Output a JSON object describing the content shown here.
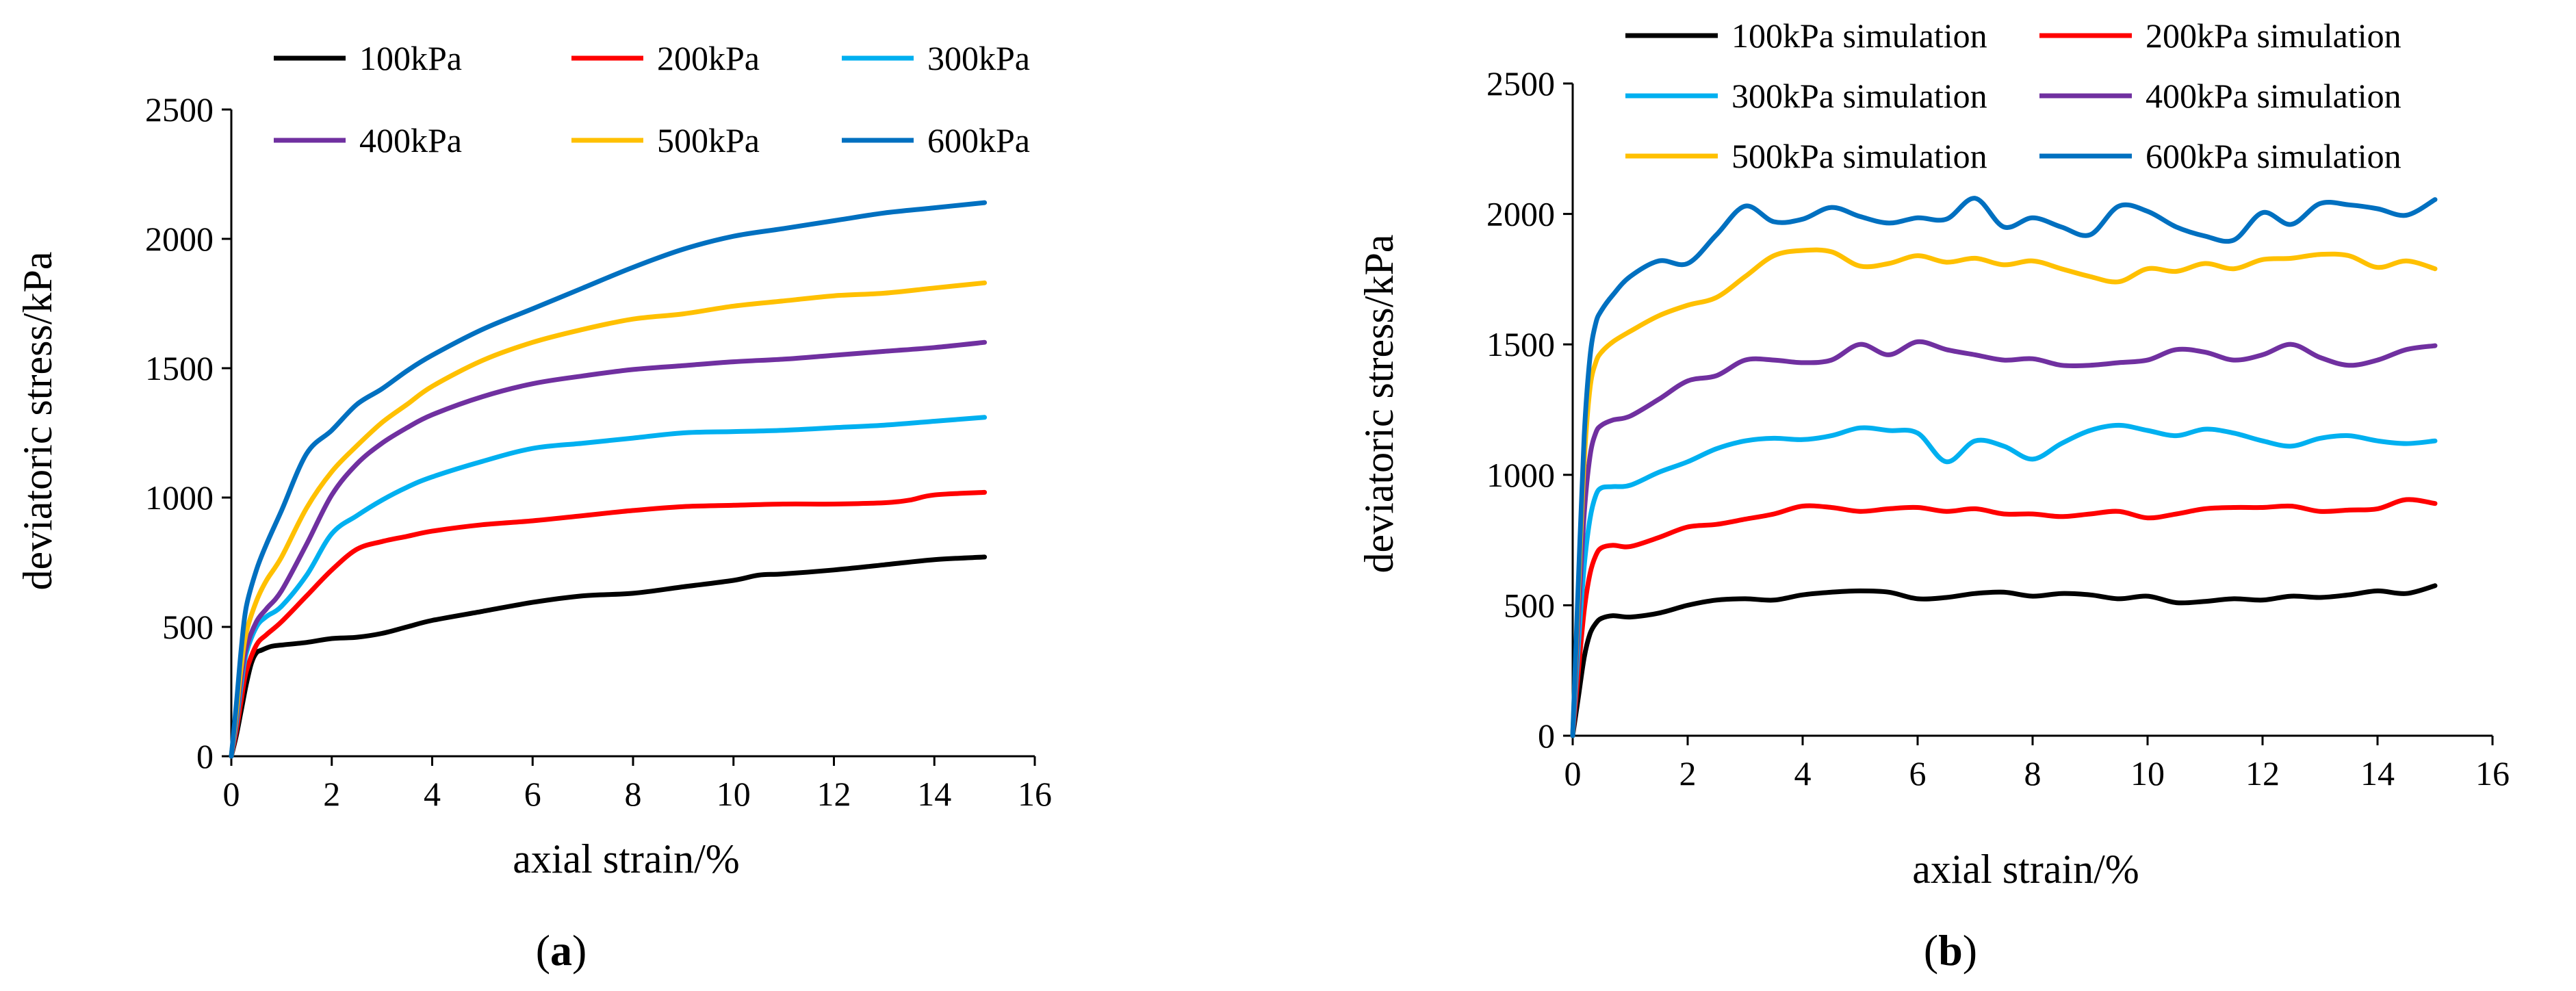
{
  "figure": {
    "panels": [
      {
        "caption_open": "(",
        "caption_letter": "a",
        "caption_close": ")"
      },
      {
        "caption_open": "(",
        "caption_letter": "b",
        "caption_close": ")"
      }
    ]
  },
  "chart_data": [
    {
      "type": "line",
      "panel": "a",
      "title": "",
      "xlabel": "axial strain/%",
      "ylabel": "deviatoric stress/kPa",
      "xlim": [
        0,
        16
      ],
      "ylim": [
        0,
        2500
      ],
      "xticks": [
        0,
        2,
        4,
        6,
        8,
        10,
        12,
        14,
        16
      ],
      "yticks": [
        0,
        500,
        1000,
        1500,
        2000,
        2500
      ],
      "grid": false,
      "legend_position": "top",
      "series": [
        {
          "name": "100kPa",
          "color": "#000000",
          "x": [
            0,
            0.1,
            0.2,
            0.3,
            0.4,
            0.5,
            0.6,
            0.8,
            1,
            1.5,
            2,
            2.5,
            3,
            3.5,
            4,
            5,
            6,
            7,
            8,
            9,
            10,
            10.5,
            11,
            12,
            13,
            14,
            15
          ],
          "y": [
            0,
            80,
            180,
            280,
            360,
            400,
            410,
            425,
            430,
            440,
            455,
            460,
            475,
            500,
            525,
            560,
            595,
            620,
            630,
            655,
            680,
            700,
            705,
            720,
            740,
            760,
            770
          ]
        },
        {
          "name": "200kPa",
          "color": "#ff0000",
          "x": [
            0,
            0.1,
            0.2,
            0.3,
            0.5,
            0.7,
            1,
            1.5,
            2,
            2.5,
            3,
            3.5,
            4,
            5,
            6,
            7,
            8,
            9,
            10,
            11,
            12,
            13,
            13.5,
            14,
            15
          ],
          "y": [
            0,
            100,
            220,
            330,
            430,
            470,
            520,
            620,
            720,
            800,
            830,
            850,
            870,
            895,
            910,
            930,
            950,
            965,
            970,
            975,
            975,
            980,
            990,
            1010,
            1020
          ]
        },
        {
          "name": "300kPa",
          "color": "#00b0f0",
          "x": [
            0,
            0.1,
            0.2,
            0.3,
            0.5,
            0.7,
            1,
            1.5,
            2,
            2.5,
            3,
            3.5,
            4,
            5,
            6,
            7,
            8,
            9,
            10,
            11,
            12,
            13,
            14,
            15
          ],
          "y": [
            0,
            130,
            280,
            400,
            500,
            540,
            580,
            700,
            860,
            930,
            990,
            1040,
            1080,
            1140,
            1190,
            1210,
            1230,
            1250,
            1255,
            1260,
            1270,
            1280,
            1295,
            1310
          ]
        },
        {
          "name": "400kPa",
          "color": "#7030a0",
          "x": [
            0,
            0.1,
            0.2,
            0.3,
            0.5,
            0.7,
            1,
            1.5,
            2,
            2.5,
            3,
            3.5,
            4,
            5,
            6,
            7,
            8,
            9,
            10,
            11,
            12,
            13,
            14,
            15
          ],
          "y": [
            0,
            150,
            310,
            420,
            520,
            570,
            640,
            820,
            1010,
            1130,
            1210,
            1270,
            1320,
            1390,
            1440,
            1470,
            1495,
            1510,
            1525,
            1535,
            1550,
            1565,
            1580,
            1600
          ]
        },
        {
          "name": "500kPa",
          "color": "#ffc000",
          "x": [
            0,
            0.1,
            0.2,
            0.3,
            0.5,
            0.7,
            1,
            1.5,
            2,
            2.5,
            3,
            3.5,
            4,
            5,
            6,
            7,
            8,
            9,
            10,
            11,
            12,
            13,
            14,
            15
          ],
          "y": [
            0,
            170,
            350,
            480,
            600,
            680,
            770,
            960,
            1100,
            1200,
            1290,
            1360,
            1430,
            1530,
            1600,
            1650,
            1690,
            1710,
            1740,
            1760,
            1780,
            1790,
            1810,
            1830
          ]
        },
        {
          "name": "600kPa",
          "color": "#0070c0",
          "x": [
            0,
            0.1,
            0.2,
            0.3,
            0.5,
            0.7,
            1,
            1.5,
            2,
            2.5,
            3,
            3.5,
            4,
            5,
            6,
            7,
            8,
            9,
            10,
            11,
            12,
            13,
            14,
            15
          ],
          "y": [
            0,
            200,
            420,
            580,
            720,
            820,
            950,
            1170,
            1260,
            1360,
            1420,
            1490,
            1550,
            1650,
            1730,
            1810,
            1890,
            1960,
            2010,
            2040,
            2070,
            2100,
            2120,
            2140
          ]
        }
      ]
    },
    {
      "type": "line",
      "panel": "b",
      "title": "",
      "xlabel": "axial strain/%",
      "ylabel": "deviatoric stress/kPa",
      "xlim": [
        0,
        16
      ],
      "ylim": [
        0,
        2500
      ],
      "xticks": [
        0,
        2,
        4,
        6,
        8,
        10,
        12,
        14,
        16
      ],
      "yticks": [
        0,
        500,
        1000,
        1500,
        2000,
        2500
      ],
      "grid": false,
      "legend_position": "top",
      "series": [
        {
          "name": "100kPa simulation",
          "color": "#000000",
          "x": [
            0,
            0.1,
            0.2,
            0.3,
            0.4,
            0.5,
            0.7,
            1,
            1.5,
            2,
            2.5,
            3,
            3.5,
            4,
            4.5,
            5,
            5.5,
            6,
            6.5,
            7,
            7.5,
            8,
            8.5,
            9,
            9.5,
            10,
            10.5,
            11,
            11.5,
            12,
            12.5,
            13,
            13.5,
            14,
            14.5,
            15
          ],
          "y": [
            0,
            150,
            300,
            390,
            430,
            450,
            460,
            455,
            470,
            500,
            520,
            525,
            520,
            540,
            550,
            555,
            550,
            525,
            530,
            545,
            550,
            535,
            545,
            540,
            525,
            535,
            510,
            515,
            525,
            520,
            535,
            530,
            540,
            555,
            545,
            575
          ]
        },
        {
          "name": "200kPa simulation",
          "color": "#ff0000",
          "x": [
            0,
            0.1,
            0.2,
            0.3,
            0.4,
            0.5,
            0.7,
            1,
            1.5,
            2,
            2.5,
            3,
            3.5,
            4,
            4.5,
            5,
            5.5,
            6,
            6.5,
            7,
            7.5,
            8,
            8.5,
            9,
            9.5,
            10,
            10.5,
            11,
            11.5,
            12,
            12.5,
            13,
            13.5,
            14,
            14.5,
            15
          ],
          "y": [
            0,
            250,
            480,
            620,
            690,
            720,
            730,
            725,
            760,
            800,
            810,
            830,
            850,
            880,
            875,
            860,
            870,
            875,
            860,
            870,
            850,
            850,
            840,
            850,
            860,
            835,
            850,
            870,
            875,
            875,
            880,
            860,
            865,
            870,
            905,
            890
          ]
        },
        {
          "name": "300kPa simulation",
          "color": "#00b0f0",
          "x": [
            0,
            0.1,
            0.2,
            0.3,
            0.4,
            0.5,
            0.7,
            1,
            1.5,
            2,
            2.5,
            3,
            3.5,
            4,
            4.5,
            5,
            5.5,
            6,
            6.5,
            7,
            7.5,
            8,
            8.5,
            9,
            9.5,
            10,
            10.5,
            11,
            11.5,
            12,
            12.5,
            13,
            13.5,
            14,
            14.5,
            15
          ],
          "y": [
            0,
            350,
            650,
            830,
            920,
            950,
            955,
            960,
            1010,
            1050,
            1100,
            1130,
            1140,
            1135,
            1150,
            1180,
            1170,
            1160,
            1050,
            1130,
            1110,
            1060,
            1120,
            1170,
            1190,
            1170,
            1150,
            1175,
            1160,
            1130,
            1110,
            1140,
            1150,
            1130,
            1120,
            1130
          ]
        },
        {
          "name": "400kPa simulation",
          "color": "#7030a0",
          "x": [
            0,
            0.1,
            0.2,
            0.3,
            0.4,
            0.5,
            0.7,
            1,
            1.5,
            2,
            2.5,
            3,
            3.5,
            4,
            4.5,
            5,
            5.5,
            6,
            6.5,
            7,
            7.5,
            8,
            8.5,
            9,
            9.5,
            10,
            10.5,
            11,
            11.5,
            12,
            12.5,
            13,
            13.5,
            14,
            14.5,
            15
          ],
          "y": [
            0,
            450,
            850,
            1070,
            1160,
            1190,
            1210,
            1225,
            1290,
            1360,
            1380,
            1440,
            1440,
            1430,
            1440,
            1500,
            1460,
            1510,
            1480,
            1460,
            1440,
            1445,
            1420,
            1420,
            1430,
            1440,
            1480,
            1470,
            1440,
            1460,
            1500,
            1450,
            1420,
            1440,
            1480,
            1495
          ]
        },
        {
          "name": "500kPa simulation",
          "color": "#ffc000",
          "x": [
            0,
            0.1,
            0.2,
            0.3,
            0.4,
            0.5,
            0.7,
            1,
            1.5,
            2,
            2.5,
            3,
            3.5,
            4,
            4.5,
            5,
            5.5,
            6,
            6.5,
            7,
            7.5,
            8,
            8.5,
            9,
            9.5,
            10,
            10.5,
            11,
            11.5,
            12,
            12.5,
            13,
            13.5,
            14,
            14.5,
            15
          ],
          "y": [
            0,
            550,
            1050,
            1330,
            1430,
            1470,
            1510,
            1550,
            1610,
            1650,
            1680,
            1760,
            1840,
            1860,
            1855,
            1800,
            1810,
            1840,
            1815,
            1830,
            1805,
            1820,
            1790,
            1760,
            1740,
            1790,
            1780,
            1810,
            1790,
            1825,
            1830,
            1845,
            1840,
            1795,
            1820,
            1790
          ]
        },
        {
          "name": "600kPa simulation",
          "color": "#0070c0",
          "x": [
            0,
            0.1,
            0.2,
            0.3,
            0.4,
            0.5,
            0.7,
            1,
            1.5,
            2,
            2.5,
            3,
            3.5,
            4,
            4.5,
            5,
            5.5,
            6,
            6.5,
            7,
            7.5,
            8,
            8.5,
            9,
            9.5,
            10,
            10.5,
            11,
            11.5,
            12,
            12.5,
            13,
            13.5,
            14,
            14.5,
            15
          ],
          "y": [
            0,
            600,
            1150,
            1450,
            1580,
            1630,
            1690,
            1760,
            1820,
            1810,
            1920,
            2030,
            1970,
            1980,
            2025,
            1990,
            1965,
            1985,
            1980,
            2060,
            1950,
            1985,
            1950,
            1920,
            2030,
            2010,
            1950,
            1915,
            1900,
            2005,
            1960,
            2040,
            2035,
            2020,
            1995,
            2055
          ]
        }
      ]
    }
  ]
}
